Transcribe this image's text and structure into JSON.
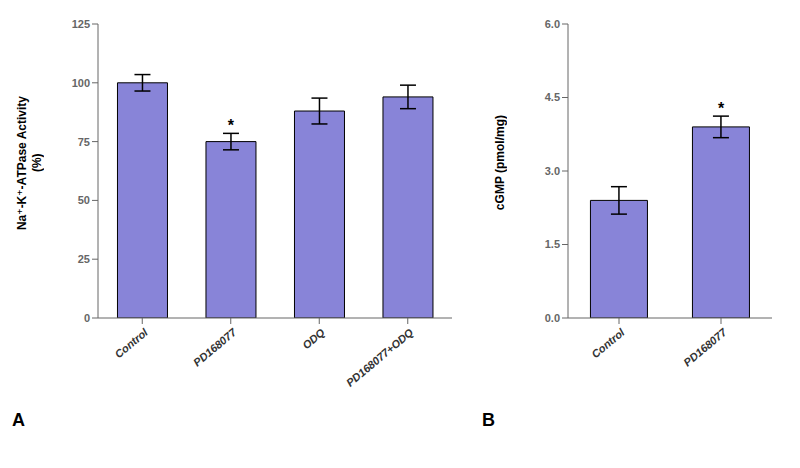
{
  "chart_data": [
    {
      "type": "bar",
      "title": "A",
      "categories": [
        "Control",
        "PD168077",
        "ODQ",
        "PD168077+ODQ"
      ],
      "values": [
        100,
        75,
        88,
        94
      ],
      "errors": [
        3.5,
        3.5,
        5.5,
        5.0
      ],
      "ylabel": "Na⁺-K⁺-ATPase Activity\n(%)",
      "ylim": [
        0,
        125
      ],
      "yticks": [
        0,
        25,
        50,
        75,
        100,
        125
      ],
      "annotations": [
        {
          "category": "PD168077",
          "text": "*"
        }
      ],
      "color": "#8884d8"
    },
    {
      "type": "bar",
      "title": "B",
      "categories": [
        "Control",
        "PD168077"
      ],
      "values": [
        2.4,
        3.9
      ],
      "errors": [
        0.28,
        0.22
      ],
      "ylabel": "cGMP (pmol/mg)",
      "ylim": [
        0,
        6.0
      ],
      "yticks": [
        {
          "value": 0,
          "label": "0.0"
        },
        1.5,
        {
          "value": 3,
          "label": "3.0"
        },
        4.5,
        {
          "value": 6,
          "label": "6.0"
        }
      ],
      "annotations": [
        {
          "category": "PD168077",
          "text": "*"
        }
      ],
      "color": "#8884d8"
    }
  ]
}
